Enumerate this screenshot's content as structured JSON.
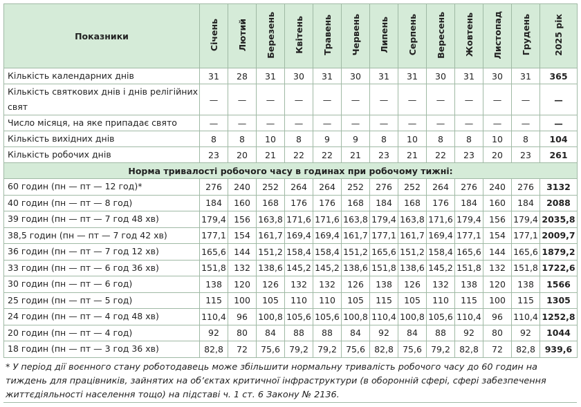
{
  "table": {
    "corner": "Показники",
    "columns": [
      "Січень",
      "Лютий",
      "Березень",
      "Квітень",
      "Травень",
      "Червень",
      "Липень",
      "Серпень",
      "Вересень",
      "Жовтень",
      "Листопад",
      "Грудень",
      "2025 рік"
    ],
    "rows_top": [
      {
        "label": "Кількість календарних днів",
        "cells": [
          "31",
          "28",
          "31",
          "30",
          "31",
          "30",
          "31",
          "31",
          "30",
          "31",
          "30",
          "31",
          "365"
        ]
      },
      {
        "label": "Кількість святкових днів і днів релігійних свят",
        "cells": [
          "—",
          "—",
          "—",
          "—",
          "—",
          "—",
          "—",
          "—",
          "—",
          "—",
          "—",
          "—",
          "—"
        ]
      },
      {
        "label": "Число місяця, на яке припадає свято",
        "cells": [
          "—",
          "—",
          "—",
          "—",
          "—",
          "—",
          "—",
          "—",
          "—",
          "—",
          "—",
          "—",
          "—"
        ]
      },
      {
        "label": "Кількість вихідних днів",
        "cells": [
          "8",
          "8",
          "10",
          "8",
          "9",
          "9",
          "8",
          "10",
          "8",
          "8",
          "10",
          "8",
          "104"
        ]
      },
      {
        "label": "Кількість робочих днів",
        "cells": [
          "23",
          "20",
          "21",
          "22",
          "22",
          "21",
          "23",
          "21",
          "22",
          "23",
          "20",
          "23",
          "261"
        ]
      }
    ],
    "section": "Норма тривалості робочого часу в годинах при робочому тижні:",
    "rows_bottom": [
      {
        "label": "60 годин (пн — пт — 12 год)*",
        "cells": [
          "276",
          "240",
          "252",
          "264",
          "264",
          "252",
          "276",
          "252",
          "264",
          "276",
          "240",
          "276",
          "3132"
        ]
      },
      {
        "label": "40 годин (пн — пт — 8 год)",
        "cells": [
          "184",
          "160",
          "168",
          "176",
          "176",
          "168",
          "184",
          "168",
          "176",
          "184",
          "160",
          "184",
          "2088"
        ]
      },
      {
        "label": "39 годин (пн — пт — 7 год 48 хв)",
        "cells": [
          "179,4",
          "156",
          "163,8",
          "171,6",
          "171,6",
          "163,8",
          "179,4",
          "163,8",
          "171,6",
          "179,4",
          "156",
          "179,4",
          "2035,8"
        ]
      },
      {
        "label": "38,5 годин (пн — пт — 7 год 42 хв)",
        "cells": [
          "177,1",
          "154",
          "161,7",
          "169,4",
          "169,4",
          "161,7",
          "177,1",
          "161,7",
          "169,4",
          "177,1",
          "154",
          "177,1",
          "2009,7"
        ]
      },
      {
        "label": "36 годин (пн — пт — 7 год 12 хв)",
        "cells": [
          "165,6",
          "144",
          "151,2",
          "158,4",
          "158,4",
          "151,2",
          "165,6",
          "151,2",
          "158,4",
          "165,6",
          "144",
          "165,6",
          "1879,2"
        ]
      },
      {
        "label": "33 годин (пн — пт — 6 год 36 хв)",
        "cells": [
          "151,8",
          "132",
          "138,6",
          "145,2",
          "145,2",
          "138,6",
          "151,8",
          "138,6",
          "145,2",
          "151,8",
          "132",
          "151,8",
          "1722,6"
        ]
      },
      {
        "label": "30 годин (пн — пт — 6 год)",
        "cells": [
          "138",
          "120",
          "126",
          "132",
          "132",
          "126",
          "138",
          "126",
          "132",
          "138",
          "120",
          "138",
          "1566"
        ]
      },
      {
        "label": "25 годин (пн — пт — 5 год)",
        "cells": [
          "115",
          "100",
          "105",
          "110",
          "110",
          "105",
          "115",
          "105",
          "110",
          "115",
          "100",
          "115",
          "1305"
        ]
      },
      {
        "label": "24 годин (пн — пт — 4 год 48 хв)",
        "cells": [
          "110,4",
          "96",
          "100,8",
          "105,6",
          "105,6",
          "100,8",
          "110,4",
          "100,8",
          "105,6",
          "110,4",
          "96",
          "110,4",
          "1252,8"
        ]
      },
      {
        "label": "20 годин (пн — пт — 4 год)",
        "cells": [
          "92",
          "80",
          "84",
          "88",
          "88",
          "84",
          "92",
          "84",
          "88",
          "92",
          "80",
          "92",
          "1044"
        ]
      },
      {
        "label": "18 годин (пн — пт — 3 год 36 хв)",
        "cells": [
          "82,8",
          "72",
          "75,6",
          "79,2",
          "79,2",
          "75,6",
          "82,8",
          "75,6",
          "79,2",
          "82,8",
          "72",
          "82,8",
          "939,6"
        ]
      }
    ]
  },
  "footnote": "* У період дії воєнного стану роботодавець може збільшити нормальну тривалість робочого часу до 60 годин на тиждень для працівників, зайнятих на об’єктах критичної інфраструктури (в оборонній сфері, сфері забезпечення життєдіяльності населення тощо) на підставі ч. 1 ст. 6 Закону № 2136."
}
